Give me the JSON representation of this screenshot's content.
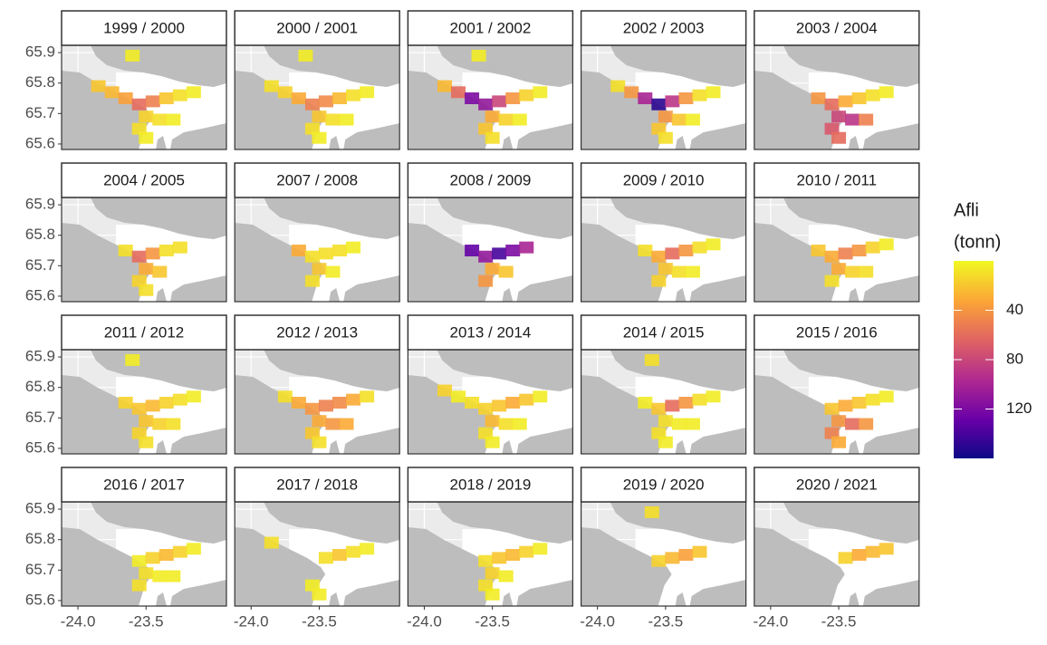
{
  "chart_data": {
    "type": "tile-map",
    "x": [
      -23.85,
      -23.75,
      -23.65,
      -23.55,
      -23.45,
      -23.35,
      -23.25,
      -23.15,
      -23.5,
      -23.4,
      -23.3,
      -23.55,
      -23.5,
      -23.6
    ],
    "y": [
      65.79,
      65.77,
      65.75,
      65.73,
      65.74,
      65.75,
      65.76,
      65.77,
      65.69,
      65.68,
      65.68,
      65.65,
      65.62,
      65.89
    ],
    "facets": [
      {
        "title": "1999 / 2000",
        "values": [
          20,
          25,
          35,
          60,
          50,
          20,
          10,
          5,
          15,
          10,
          5,
          10,
          5,
          5
        ]
      },
      {
        "title": "2000 / 2001",
        "values": [
          10,
          15,
          30,
          50,
          45,
          25,
          10,
          5,
          20,
          10,
          5,
          10,
          5,
          5
        ]
      },
      {
        "title": "2001 / 2002",
        "values": [
          25,
          60,
          120,
          110,
          80,
          40,
          15,
          5,
          30,
          15,
          5,
          20,
          10,
          5
        ]
      },
      {
        "title": "2002 / 2003",
        "values": [
          10,
          40,
          100,
          150,
          90,
          40,
          10,
          5,
          40,
          20,
          5,
          20,
          10,
          null
        ]
      },
      {
        "title": "2003 / 2004",
        "values": [
          null,
          null,
          40,
          60,
          30,
          20,
          10,
          5,
          80,
          90,
          50,
          70,
          60,
          null
        ]
      },
      {
        "title": "2004 / 2005",
        "values": [
          null,
          null,
          10,
          60,
          40,
          10,
          10,
          null,
          30,
          20,
          null,
          15,
          10,
          null
        ]
      },
      {
        "title": "2007 / 2008",
        "values": [
          null,
          null,
          30,
          10,
          10,
          10,
          5,
          null,
          20,
          5,
          null,
          10,
          null,
          null
        ]
      },
      {
        "title": "2008 / 2009",
        "values": [
          null,
          null,
          130,
          110,
          140,
          120,
          100,
          null,
          30,
          20,
          null,
          40,
          null,
          null
        ]
      },
      {
        "title": "2009 / 2010",
        "values": [
          null,
          null,
          10,
          30,
          60,
          40,
          10,
          5,
          20,
          10,
          5,
          15,
          null,
          null
        ]
      },
      {
        "title": "2010 / 2011",
        "values": [
          null,
          null,
          20,
          30,
          50,
          40,
          15,
          5,
          30,
          15,
          10,
          10,
          null,
          null
        ]
      },
      {
        "title": "2011 / 2012",
        "values": [
          null,
          null,
          15,
          20,
          25,
          15,
          10,
          5,
          20,
          15,
          10,
          15,
          10,
          5
        ]
      },
      {
        "title": "2012 / 2013",
        "values": [
          null,
          10,
          30,
          40,
          50,
          45,
          30,
          10,
          30,
          40,
          30,
          20,
          10,
          null
        ]
      },
      {
        "title": "2013 / 2014",
        "values": [
          15,
          5,
          10,
          15,
          20,
          30,
          20,
          5,
          25,
          10,
          5,
          10,
          5,
          null
        ]
      },
      {
        "title": "2014 / 2015",
        "values": [
          null,
          null,
          5,
          20,
          60,
          40,
          10,
          5,
          10,
          5,
          5,
          10,
          5,
          10
        ]
      },
      {
        "title": "2015 / 2016",
        "values": [
          null,
          null,
          null,
          20,
          30,
          20,
          10,
          5,
          40,
          60,
          40,
          50,
          30,
          null
        ]
      },
      {
        "title": "2016 / 2017",
        "values": [
          null,
          null,
          null,
          5,
          15,
          25,
          15,
          5,
          10,
          5,
          5,
          10,
          null,
          null
        ]
      },
      {
        "title": "2017 / 2018",
        "values": [
          10,
          null,
          null,
          null,
          10,
          20,
          10,
          5,
          null,
          null,
          null,
          5,
          5,
          null
        ]
      },
      {
        "title": "2018 / 2019",
        "values": [
          null,
          null,
          null,
          10,
          20,
          25,
          15,
          5,
          15,
          5,
          null,
          10,
          5,
          null
        ]
      },
      {
        "title": "2019 / 2020",
        "values": [
          null,
          null,
          null,
          15,
          25,
          35,
          20,
          null,
          null,
          null,
          null,
          null,
          null,
          10
        ]
      },
      {
        "title": "2020 / 2021",
        "values": [
          null,
          null,
          null,
          null,
          15,
          30,
          25,
          20,
          null,
          null,
          null,
          null,
          null,
          null
        ]
      }
    ],
    "xlim": [
      -24.12,
      -22.91
    ],
    "xticks": [
      {
        "value": -24,
        "label": "-24.0"
      },
      {
        "value": -23.5,
        "label": "-23.5"
      }
    ],
    "ylim": [
      65.582,
      65.924
    ],
    "yticks": [
      65.6,
      65.7,
      65.8,
      65.9
    ],
    "grid": true,
    "legend": {
      "title": [
        "Afli",
        "(tonn)"
      ],
      "colorlim": [
        0,
        160
      ],
      "ticks": [
        40,
        80,
        120
      ],
      "colors": [
        "#f0f921",
        "#fca636",
        "#e16462",
        "#b12a90",
        "#6a00a8",
        "#0d0887"
      ]
    }
  }
}
